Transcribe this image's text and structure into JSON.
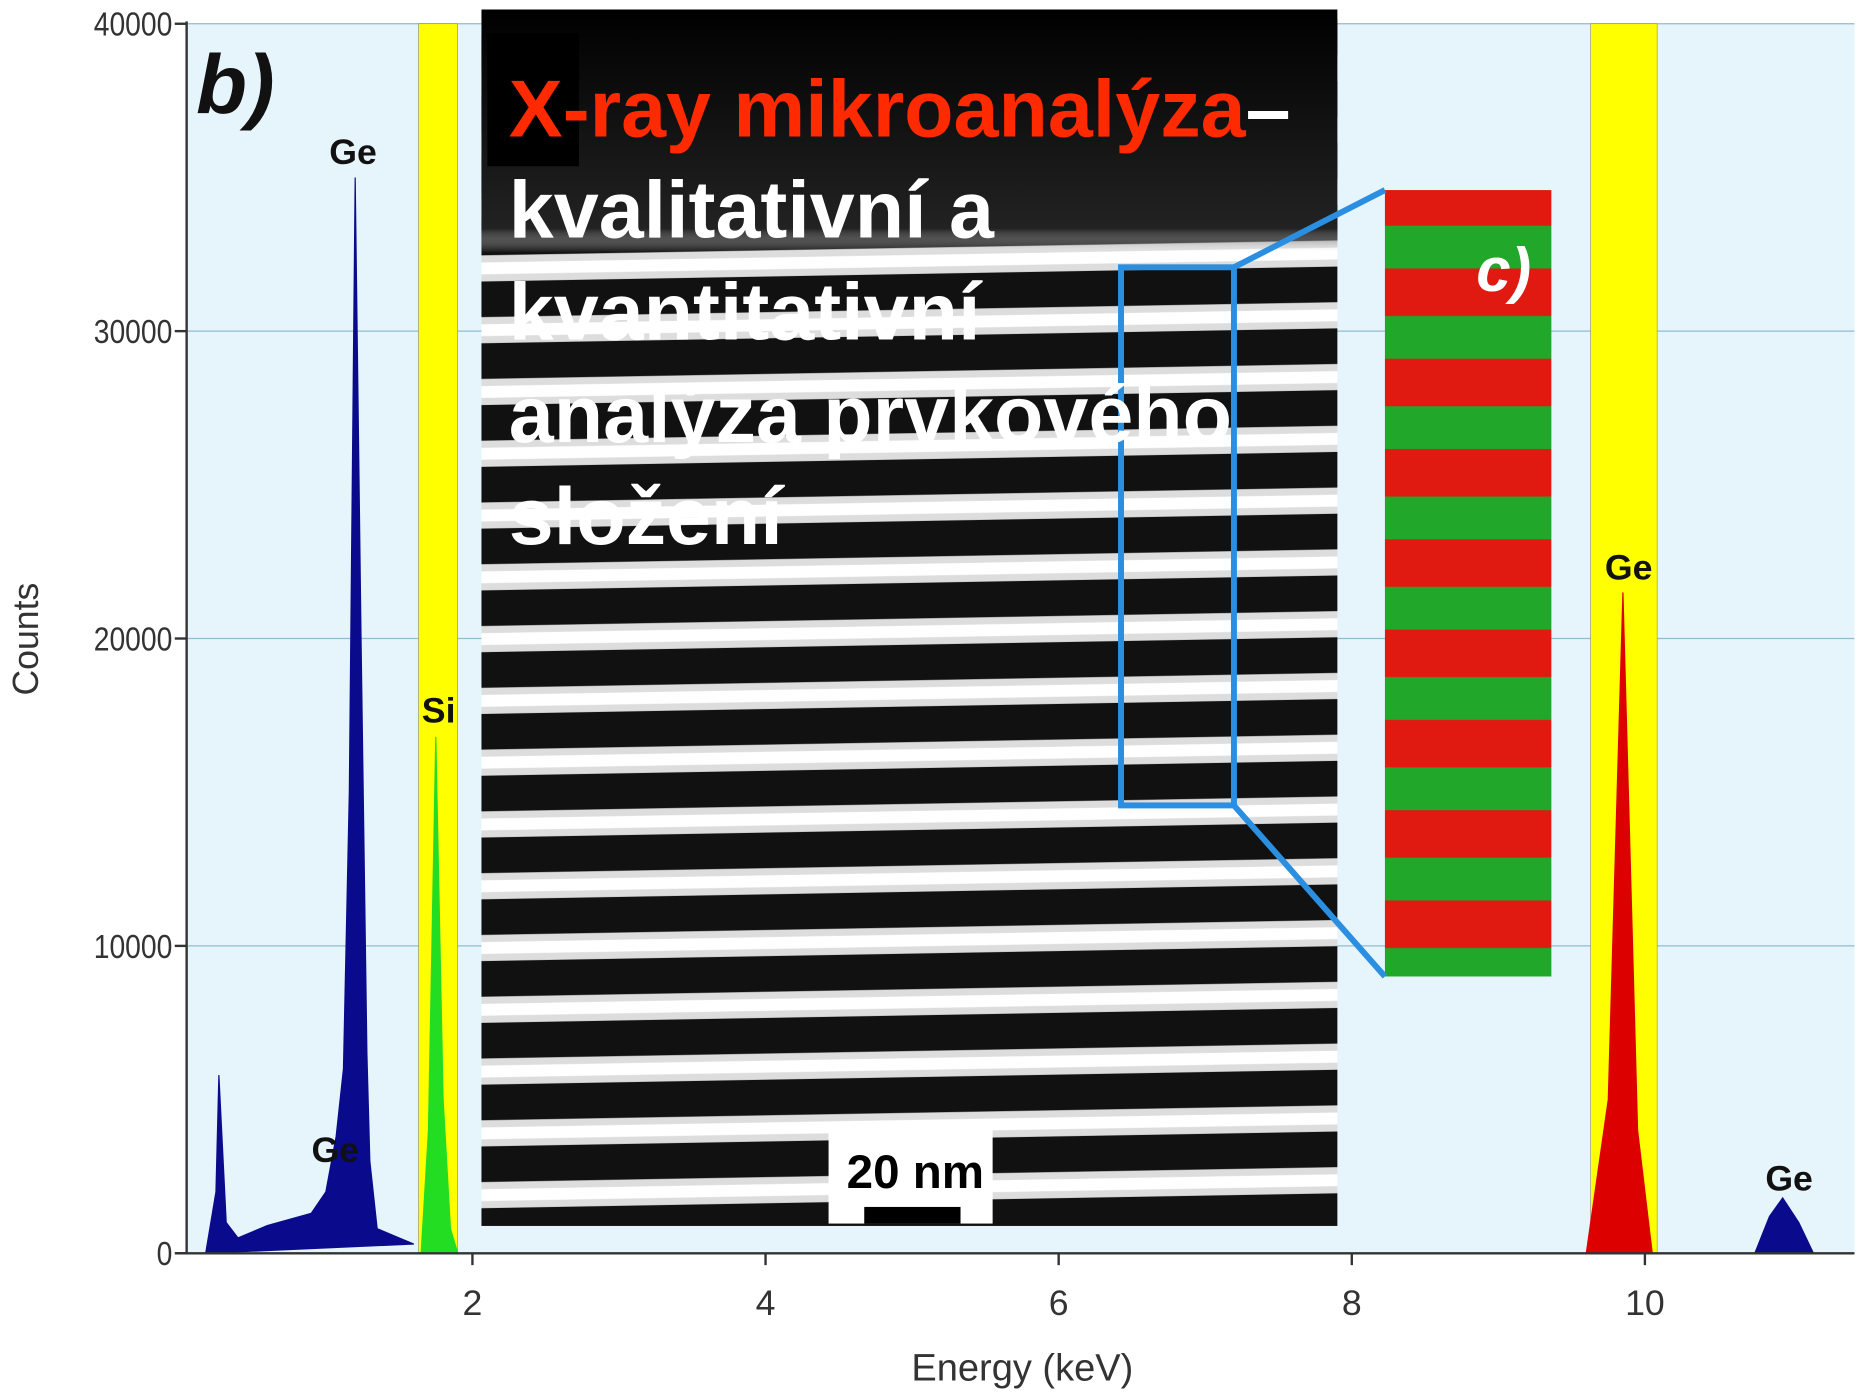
{
  "slide": {
    "heading": "X-ray mikroanalýza",
    "dash": "–",
    "lines": [
      "kvalitativní a",
      "kvantitativní",
      "analýza prvkového",
      "složení"
    ]
  },
  "chart_data": {
    "type": "area",
    "x_label": "Energy (keV)",
    "y_label": "Counts",
    "xlim": [
      0.05,
      11.43
    ],
    "ylim": [
      0,
      40000
    ],
    "xticks": [
      2,
      4,
      6,
      8,
      10
    ],
    "yticks": [
      0,
      10000,
      20000,
      30000,
      40000
    ],
    "grid": true,
    "annotations": [
      "b)",
      "c)",
      "Ge",
      "Ge",
      "Si",
      "Ge",
      "Ge",
      "20 nm"
    ],
    "series": [
      {
        "color": "#0a0a8c",
        "x": [
          0.18,
          0.25,
          0.27,
          0.32,
          0.4,
          0.6,
          0.9,
          1.0,
          1.07,
          1.12,
          1.16,
          1.2,
          1.24,
          1.28,
          1.3,
          1.35,
          1.5,
          1.6
        ],
        "values": [
          0,
          2000,
          5800,
          1000,
          500,
          900,
          1300,
          2000,
          3800,
          6000,
          15000,
          35000,
          20000,
          6500,
          3000,
          800,
          500,
          300
        ]
      },
      {
        "color": "#22dd22",
        "x": [
          1.65,
          1.7,
          1.75,
          1.8,
          1.85,
          1.9
        ],
        "values": [
          0,
          4000,
          16800,
          5000,
          800,
          0
        ]
      },
      {
        "color": "#dd0000",
        "x": [
          9.6,
          9.75,
          9.85,
          9.95,
          10.05
        ],
        "values": [
          0,
          5000,
          21500,
          4000,
          0
        ]
      },
      {
        "color": "#0a0a8c",
        "x": [
          10.75,
          10.85,
          10.94,
          11.05,
          11.15
        ],
        "values": [
          0,
          1200,
          1800,
          1000,
          0
        ]
      }
    ]
  }
}
